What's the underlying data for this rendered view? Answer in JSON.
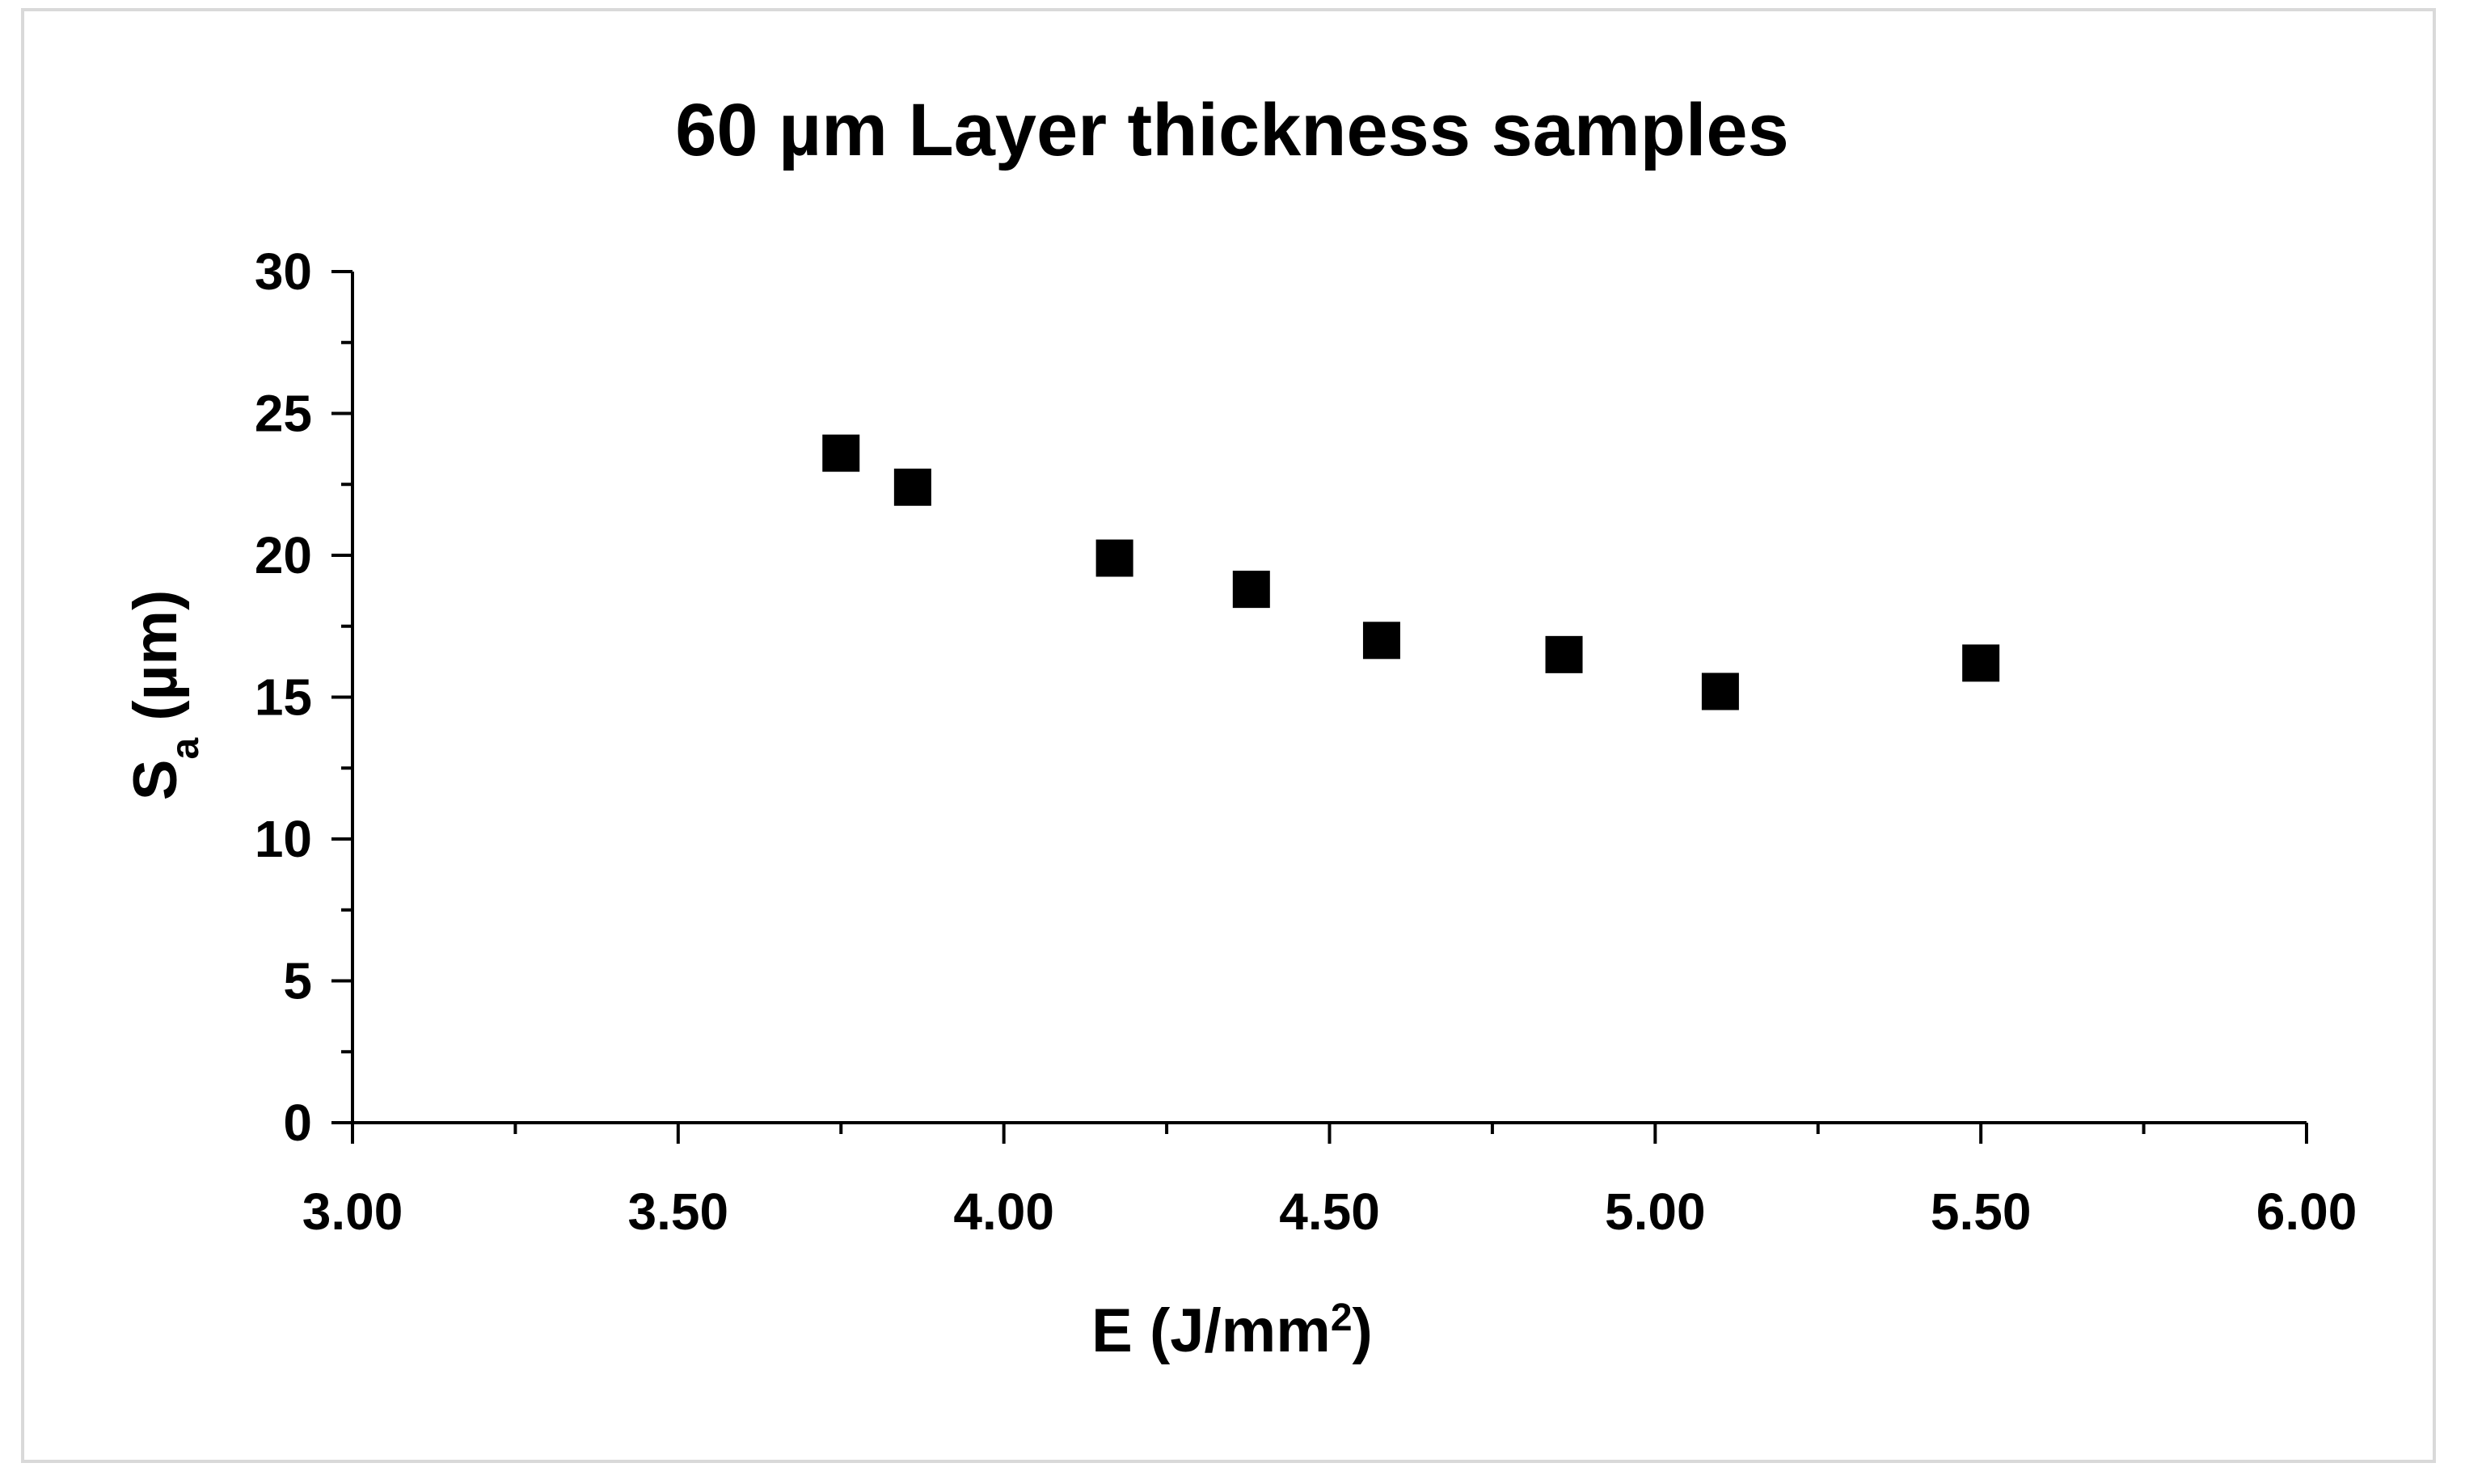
{
  "chart_data": {
    "type": "scatter",
    "title": "60 µm Layer thickness samples",
    "xlabel": {
      "main": "E (J/mm",
      "superscript": "2",
      "close": ")"
    },
    "ylabel": {
      "main": "S",
      "subscript": "a",
      "rest": " (µm)"
    },
    "xlim": [
      3.0,
      6.0
    ],
    "ylim": [
      0,
      30
    ],
    "x_ticks": [
      "3.00",
      "3.50",
      "4.00",
      "4.50",
      "5.00",
      "5.50",
      "6.00"
    ],
    "y_ticks": [
      "0",
      "5",
      "10",
      "15",
      "20",
      "25",
      "30"
    ],
    "x_major_step": 0.5,
    "x_minor_step": 0.25,
    "y_major_step": 5,
    "y_minor_step": 2.5,
    "grid": false,
    "legend": "none",
    "marker": "square",
    "marker_color": "#000000",
    "points": [
      {
        "x": 3.75,
        "y": 23.6
      },
      {
        "x": 3.86,
        "y": 22.4
      },
      {
        "x": 4.17,
        "y": 19.9
      },
      {
        "x": 4.38,
        "y": 18.8
      },
      {
        "x": 4.58,
        "y": 17.0
      },
      {
        "x": 4.86,
        "y": 16.5
      },
      {
        "x": 5.1,
        "y": 15.2
      },
      {
        "x": 5.5,
        "y": 16.2
      }
    ]
  }
}
